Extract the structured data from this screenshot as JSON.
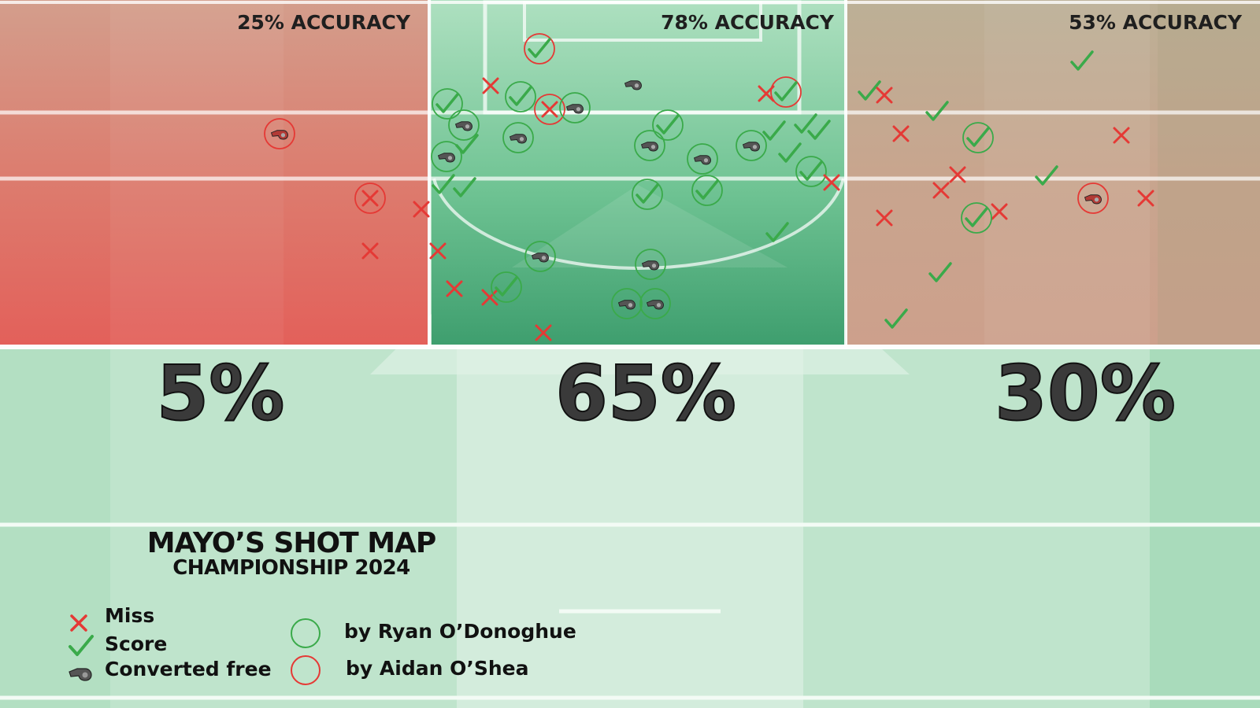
{
  "title": "MAYO’S SHOT MAP",
  "subtitle": "CHAMPIONSHIP 2024",
  "colors": {
    "miss": "#e53935",
    "score": "#3aaa4a",
    "ryan": "#3aaa4a",
    "aidan": "#e53935",
    "zone_left": "#e3655a",
    "zone_center": "#3b9f6d",
    "zone_right": "#c9a08c"
  },
  "legend": {
    "miss": "Miss",
    "score": "Score",
    "free": "Converted free",
    "ryan": "by Ryan O’Donoghue",
    "aidan": "by Aidan O’Shea"
  },
  "icons": {
    "miss": "cross-icon",
    "score": "check-icon",
    "free": "whistle-icon",
    "ryan": "green-ring-icon",
    "aidan": "red-ring-icon"
  },
  "zones": [
    {
      "id": "left",
      "accuracy_label": "25% ACCURACY",
      "share_label": "5%"
    },
    {
      "id": "center",
      "accuracy_label": "78% ACCURACY",
      "share_label": "65%"
    },
    {
      "id": "right",
      "accuracy_label": "53% ACCURACY",
      "share_label": "30%"
    }
  ],
  "chart_data": {
    "type": "scatter",
    "x_range": [
      0,
      1600
    ],
    "y_range": [
      0,
      440
    ],
    "shots": [
      {
        "x": 355,
        "y": 170,
        "result": "free",
        "ring": "aidan"
      },
      {
        "x": 470,
        "y": 252,
        "result": "miss",
        "ring": "aidan"
      },
      {
        "x": 535,
        "y": 266,
        "result": "miss",
        "ring": ""
      },
      {
        "x": 470,
        "y": 319,
        "result": "miss",
        "ring": ""
      },
      {
        "x": 556,
        "y": 319,
        "result": "miss",
        "ring": ""
      },
      {
        "x": 577,
        "y": 367,
        "result": "miss",
        "ring": ""
      },
      {
        "x": 622,
        "y": 378,
        "result": "miss",
        "ring": ""
      },
      {
        "x": 690,
        "y": 423,
        "result": "miss",
        "ring": ""
      },
      {
        "x": 623,
        "y": 109,
        "result": "miss",
        "ring": ""
      },
      {
        "x": 685,
        "y": 62,
        "result": "score",
        "ring": "aidan"
      },
      {
        "x": 568,
        "y": 132,
        "result": "score",
        "ring": "ryan"
      },
      {
        "x": 661,
        "y": 123,
        "result": "score",
        "ring": "ryan"
      },
      {
        "x": 698,
        "y": 139,
        "result": "miss",
        "ring": "aidan"
      },
      {
        "x": 730,
        "y": 137,
        "result": "free",
        "ring": "ryan"
      },
      {
        "x": 589,
        "y": 159,
        "result": "free",
        "ring": "ryan"
      },
      {
        "x": 593,
        "y": 184,
        "result": "score",
        "ring": ""
      },
      {
        "x": 567,
        "y": 199,
        "result": "free",
        "ring": "ryan"
      },
      {
        "x": 658,
        "y": 175,
        "result": "free",
        "ring": "ryan"
      },
      {
        "x": 563,
        "y": 235,
        "result": "score",
        "ring": ""
      },
      {
        "x": 590,
        "y": 239,
        "result": "score",
        "ring": ""
      },
      {
        "x": 804,
        "y": 107,
        "result": "free",
        "ring": ""
      },
      {
        "x": 973,
        "y": 119,
        "result": "miss",
        "ring": ""
      },
      {
        "x": 998,
        "y": 117,
        "result": "score",
        "ring": "aidan"
      },
      {
        "x": 848,
        "y": 159,
        "result": "score",
        "ring": "ryan"
      },
      {
        "x": 825,
        "y": 185,
        "result": "free",
        "ring": "ryan"
      },
      {
        "x": 892,
        "y": 202,
        "result": "free",
        "ring": "ryan"
      },
      {
        "x": 954,
        "y": 185,
        "result": "free",
        "ring": "ryan"
      },
      {
        "x": 983,
        "y": 167,
        "result": "score",
        "ring": ""
      },
      {
        "x": 1023,
        "y": 158,
        "result": "score",
        "ring": ""
      },
      {
        "x": 1040,
        "y": 166,
        "result": "score",
        "ring": ""
      },
      {
        "x": 1003,
        "y": 195,
        "result": "score",
        "ring": ""
      },
      {
        "x": 1030,
        "y": 218,
        "result": "score",
        "ring": "ryan"
      },
      {
        "x": 1056,
        "y": 232,
        "result": "miss",
        "ring": ""
      },
      {
        "x": 822,
        "y": 247,
        "result": "score",
        "ring": "ryan"
      },
      {
        "x": 898,
        "y": 242,
        "result": "score",
        "ring": "ryan"
      },
      {
        "x": 987,
        "y": 296,
        "result": "score",
        "ring": ""
      },
      {
        "x": 686,
        "y": 326,
        "result": "free",
        "ring": "ryan"
      },
      {
        "x": 826,
        "y": 336,
        "result": "free",
        "ring": "ryan"
      },
      {
        "x": 643,
        "y": 365,
        "result": "score",
        "ring": "ryan"
      },
      {
        "x": 796,
        "y": 386,
        "result": "free",
        "ring": "ryan"
      },
      {
        "x": 832,
        "y": 386,
        "result": "free",
        "ring": "ryan"
      },
      {
        "x": 1104,
        "y": 116,
        "result": "score",
        "ring": ""
      },
      {
        "x": 1123,
        "y": 121,
        "result": "miss",
        "ring": ""
      },
      {
        "x": 1374,
        "y": 78,
        "result": "score",
        "ring": ""
      },
      {
        "x": 1190,
        "y": 142,
        "result": "score",
        "ring": ""
      },
      {
        "x": 1144,
        "y": 170,
        "result": "miss",
        "ring": ""
      },
      {
        "x": 1242,
        "y": 175,
        "result": "score",
        "ring": "ryan"
      },
      {
        "x": 1424,
        "y": 172,
        "result": "miss",
        "ring": ""
      },
      {
        "x": 1216,
        "y": 222,
        "result": "miss",
        "ring": ""
      },
      {
        "x": 1195,
        "y": 242,
        "result": "miss",
        "ring": ""
      },
      {
        "x": 1329,
        "y": 224,
        "result": "score",
        "ring": ""
      },
      {
        "x": 1388,
        "y": 252,
        "result": "free",
        "ring": "aidan"
      },
      {
        "x": 1455,
        "y": 252,
        "result": "miss",
        "ring": ""
      },
      {
        "x": 1269,
        "y": 269,
        "result": "miss",
        "ring": ""
      },
      {
        "x": 1240,
        "y": 277,
        "result": "score",
        "ring": "ryan"
      },
      {
        "x": 1123,
        "y": 277,
        "result": "miss",
        "ring": ""
      },
      {
        "x": 1194,
        "y": 347,
        "result": "score",
        "ring": ""
      },
      {
        "x": 1138,
        "y": 406,
        "result": "score",
        "ring": ""
      }
    ]
  }
}
